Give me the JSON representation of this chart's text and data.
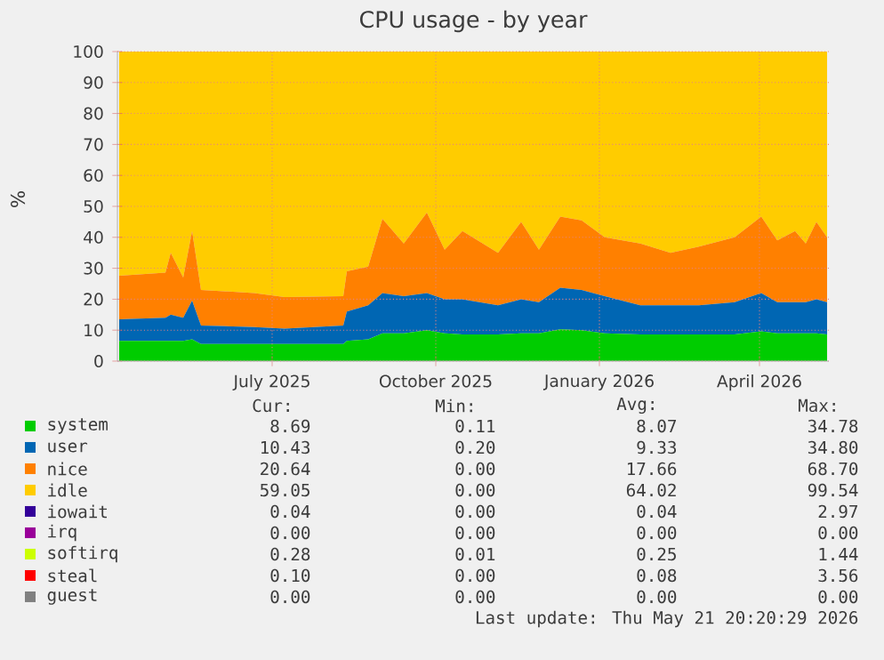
{
  "chart_data": {
    "type": "area",
    "title": "CPU usage - by year",
    "ylabel": "%",
    "stacked": true,
    "grid": true,
    "legend": "bottom",
    "x": [
      "2025-04-06",
      "2025-05-02",
      "2025-05-05",
      "2025-05-12",
      "2025-05-17",
      "2025-05-22",
      "2025-06-21",
      "2025-07-08",
      "2025-08-10",
      "2025-08-12",
      "2025-08-24",
      "2025-09-01",
      "2025-09-13",
      "2025-09-26",
      "2025-10-06",
      "2025-10-16",
      "2025-11-05",
      "2025-11-18",
      "2025-11-28",
      "2025-12-10",
      "2025-12-22",
      "2026-01-04",
      "2026-01-24",
      "2026-02-10",
      "2026-02-26",
      "2026-03-18",
      "2026-04-02",
      "2026-04-11",
      "2026-04-21",
      "2026-04-27",
      "2026-05-03",
      "2026-05-09"
    ],
    "xlim": [
      "2025-04-05",
      "2026-05-10"
    ],
    "xticks": [
      {
        "value": "2025-07-01",
        "label": "July 2025"
      },
      {
        "value": "2025-10-01",
        "label": "October 2025"
      },
      {
        "value": "2026-01-01",
        "label": "January 2026"
      },
      {
        "value": "2026-04-01",
        "label": "April 2026"
      }
    ],
    "ylim": [
      0,
      100
    ],
    "yticks": [
      0,
      10,
      20,
      30,
      40,
      50,
      60,
      70,
      80,
      90,
      100
    ],
    "series": [
      {
        "name": "system",
        "color": "#00cc00",
        "values": [
          6.5,
          6.5,
          6.5,
          6.5,
          7,
          5.5,
          5.5,
          5.5,
          5.5,
          6.5,
          7,
          9,
          9,
          10,
          9,
          8.6,
          8.6,
          9,
          9,
          10.3,
          10,
          9,
          8.6,
          8.6,
          8.6,
          8.6,
          9.6,
          9,
          9,
          9,
          9,
          8.6
        ]
      },
      {
        "name": "user",
        "color": "#0066b3",
        "values": [
          7,
          7.5,
          8.5,
          7.5,
          12.5,
          6,
          5.5,
          5,
          6,
          9.5,
          11,
          13,
          12,
          12,
          11,
          11.4,
          9.4,
          11,
          10,
          13.4,
          13,
          12,
          9.4,
          9.4,
          9.4,
          10.4,
          12.4,
          10,
          10,
          10,
          11,
          10.4
        ]
      },
      {
        "name": "nice",
        "color": "#ff8000",
        "values": [
          14.1,
          14.6,
          20,
          13,
          22.5,
          11.5,
          11,
          10.2,
          9.5,
          13,
          12.5,
          24,
          17,
          26,
          16,
          22,
          17,
          25,
          17,
          23,
          22.5,
          19,
          20,
          17,
          19,
          21,
          24.7,
          20,
          23,
          19,
          25,
          21
        ]
      },
      {
        "name": "idle",
        "color": "#ffcc00",
        "values": [
          72.4,
          71.4,
          65,
          73,
          58,
          77,
          78,
          79.3,
          79,
          71,
          69.5,
          54,
          62,
          52,
          64,
          58,
          65,
          55,
          64,
          53.3,
          54.5,
          60,
          62,
          65,
          63,
          60,
          53.3,
          61,
          58,
          62,
          55,
          60
        ]
      },
      {
        "name": "iowait",
        "color": "#330099",
        "values": [
          null,
          null,
          null,
          null,
          null,
          null,
          null,
          null,
          null,
          null,
          null,
          null,
          null,
          null,
          null,
          null,
          null,
          null,
          null,
          null,
          null,
          null,
          null,
          null,
          null,
          null,
          null,
          null,
          null,
          null,
          null,
          null
        ]
      },
      {
        "name": "irq",
        "color": "#990099",
        "values": [
          null,
          null,
          null,
          null,
          null,
          null,
          null,
          null,
          null,
          null,
          null,
          null,
          null,
          null,
          null,
          null,
          null,
          null,
          null,
          null,
          null,
          null,
          null,
          null,
          null,
          null,
          null,
          null,
          null,
          null,
          null,
          null
        ]
      },
      {
        "name": "softirq",
        "color": "#ccff00",
        "values": [
          null,
          null,
          null,
          null,
          null,
          null,
          null,
          null,
          null,
          null,
          null,
          null,
          null,
          null,
          null,
          null,
          null,
          null,
          null,
          null,
          null,
          null,
          null,
          null,
          null,
          null,
          null,
          null,
          null,
          null,
          null,
          null
        ]
      },
      {
        "name": "steal",
        "color": "#ff0000",
        "values": [
          null,
          null,
          null,
          null,
          null,
          null,
          null,
          null,
          null,
          null,
          null,
          null,
          null,
          null,
          null,
          null,
          null,
          null,
          null,
          null,
          null,
          null,
          null,
          null,
          null,
          null,
          null,
          null,
          null,
          null,
          null,
          null
        ]
      },
      {
        "name": "guest",
        "color": "#808080",
        "values": [
          null,
          null,
          null,
          null,
          null,
          null,
          null,
          null,
          null,
          null,
          null,
          null,
          null,
          null,
          null,
          null,
          null,
          null,
          null,
          null,
          null,
          null,
          null,
          null,
          null,
          null,
          null,
          null,
          null,
          null,
          null,
          null
        ]
      }
    ],
    "annotations": [
      "Cur:",
      "Min:",
      "Avg:",
      "Max:",
      "8.69",
      "0.11",
      "8.07",
      "34.78",
      "10.43",
      "0.20",
      "9.33",
      "34.80",
      "20.64",
      "0.00",
      "17.66",
      "68.70",
      "59.05",
      "0.00",
      "64.02",
      "99.54",
      "0.04",
      "0.00",
      "0.04",
      "2.97",
      "0.00",
      "0.00",
      "0.00",
      "0.00",
      "0.28",
      "0.01",
      "0.25",
      "1.44",
      "0.10",
      "0.00",
      "0.08",
      "3.56",
      "0.00",
      "0.00",
      "0.00",
      "0.00",
      "Last update: Thu May 21 20:20:29 2026"
    ]
  }
}
